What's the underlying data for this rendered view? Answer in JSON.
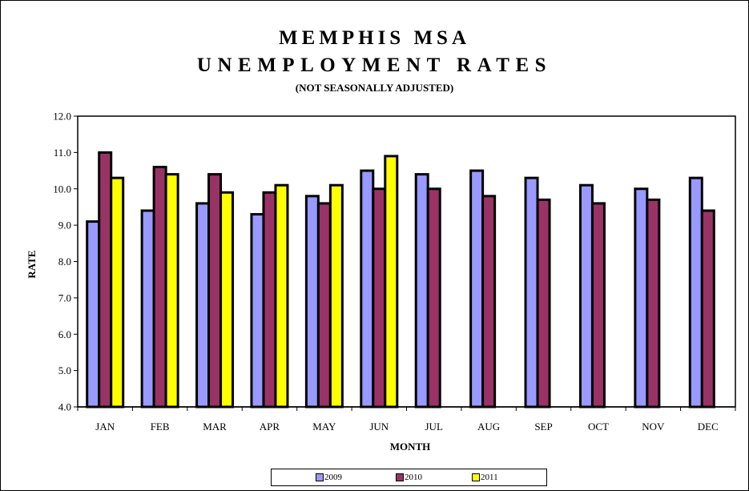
{
  "chart_data": {
    "type": "bar",
    "title": "MEMPHIS MSA",
    "title_line2": "UNEMPLOYMENT RATES",
    "subtitle": "(NOT SEASONALLY ADJUSTED)",
    "xlabel": "MONTH",
    "ylabel": "RATE",
    "ylim": [
      4.0,
      12.0
    ],
    "yticks": [
      "4.0",
      "5.0",
      "6.0",
      "7.0",
      "8.0",
      "9.0",
      "10.0",
      "11.0",
      "12.0"
    ],
    "categories": [
      "JAN",
      "FEB",
      "MAR",
      "APR",
      "MAY",
      "JUN",
      "JUL",
      "AUG",
      "SEP",
      "OCT",
      "NOV",
      "DEC"
    ],
    "series": [
      {
        "name": "2009",
        "color": "#9999ff",
        "values": [
          9.1,
          9.4,
          9.6,
          9.3,
          9.8,
          10.5,
          10.4,
          10.5,
          10.3,
          10.1,
          10.0,
          10.3
        ]
      },
      {
        "name": "2010",
        "color": "#993366",
        "values": [
          11.0,
          10.6,
          10.4,
          9.9,
          9.6,
          10.0,
          10.0,
          9.8,
          9.7,
          9.6,
          9.7,
          9.4
        ]
      },
      {
        "name": "2011",
        "color": "#ffff00",
        "values": [
          10.3,
          10.4,
          9.9,
          10.1,
          10.1,
          10.9,
          null,
          null,
          null,
          null,
          null,
          null
        ]
      }
    ],
    "grid": false,
    "legend_position": "bottom"
  }
}
